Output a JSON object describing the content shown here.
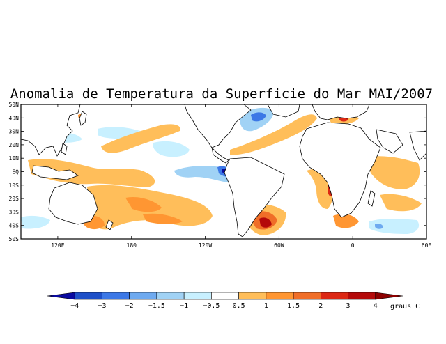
{
  "title": "Anomalia de Temperatura da Superficie do Mar MAI/2007",
  "lat_labels": [
    "50N",
    "40N",
    "30N",
    "20N",
    "10N",
    "EQ",
    "10S",
    "20S",
    "30S",
    "40S",
    "50S"
  ],
  "lon_labels": [
    "120E",
    "180",
    "120W",
    "60W",
    "0",
    "60E"
  ],
  "colorbar": {
    "unit": "graus C",
    "tick_labels": [
      "-4",
      "-3",
      "-2",
      "-1.5",
      "-1",
      "-0.5",
      "0.5",
      "1",
      "1.5",
      "2",
      "3",
      "4"
    ],
    "colors": [
      "#0a0aa0",
      "#1e50c8",
      "#3c78e6",
      "#6eaaf0",
      "#a0d2f5",
      "#c8f0ff",
      "#ffffff",
      "#ffbe5a",
      "#ff9632",
      "#f06e28",
      "#dc2814",
      "#b40a0a",
      "#8c0000"
    ]
  },
  "chart_data": {
    "type": "heatmap",
    "title": "Anomalia de Temperatura da Superficie do Mar MAI/2007",
    "variable": "Sea surface temperature anomaly",
    "units": "graus C",
    "period": "MAI/2007",
    "lat_range": [
      -50,
      50
    ],
    "lon_range": [
      90,
      420
    ],
    "contour_levels": [
      -4,
      -3,
      -2,
      -1.5,
      -1,
      -0.5,
      0.5,
      1,
      1.5,
      2,
      3,
      4
    ]
  }
}
